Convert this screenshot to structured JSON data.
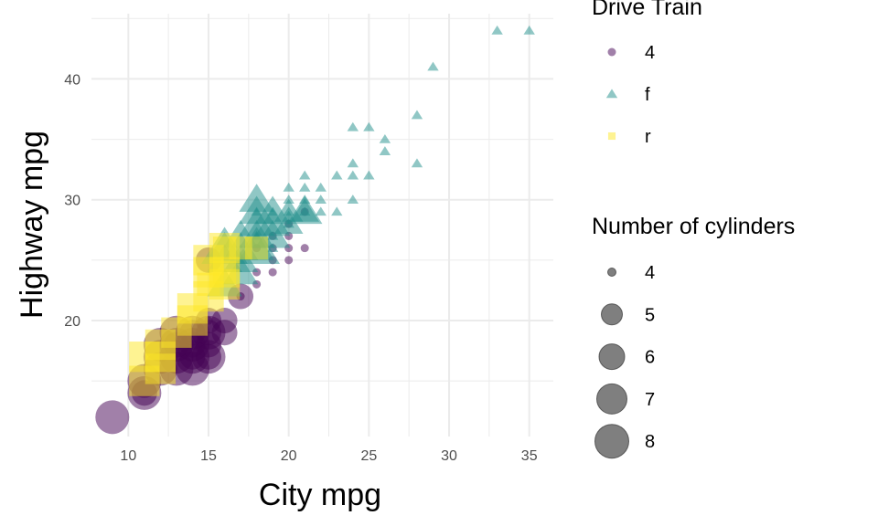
{
  "chart_data": {
    "type": "scatter",
    "xlabel": "City mpg",
    "ylabel": "Highway mpg",
    "xlim": [
      7.7,
      36.5
    ],
    "ylim": [
      10.4,
      45.4
    ],
    "x_ticks": [
      10,
      15,
      20,
      25,
      30,
      35
    ],
    "y_ticks": [
      20,
      30,
      40
    ],
    "grid": true,
    "alpha": 0.5,
    "legend_placement": "right",
    "color_legend": {
      "title": "Drive Train",
      "entries": [
        {
          "label": "4",
          "color": "#440154",
          "shape": "circle"
        },
        {
          "label": "f",
          "color": "#21908C",
          "shape": "triangle"
        },
        {
          "label": "r",
          "color": "#FDE725",
          "shape": "square"
        }
      ]
    },
    "size_legend": {
      "title": "Number of cylinders",
      "entries": [
        "4",
        "5",
        "6",
        "7",
        "8"
      ]
    },
    "point_fields": [
      "cty",
      "hwy",
      "drv",
      "cyl"
    ],
    "points": [
      [
        9,
        12,
        "4",
        8
      ],
      [
        11,
        14,
        "4",
        8
      ],
      [
        11,
        15,
        "4",
        8
      ],
      [
        12,
        16,
        "4",
        8
      ],
      [
        12,
        17,
        "4",
        8
      ],
      [
        13,
        17,
        "4",
        8
      ],
      [
        13,
        16,
        "4",
        8
      ],
      [
        14,
        17,
        "4",
        8
      ],
      [
        14,
        18,
        "4",
        8
      ],
      [
        14,
        19,
        "4",
        8
      ],
      [
        15,
        17,
        "4",
        8
      ],
      [
        13,
        18,
        "4",
        8
      ],
      [
        12,
        18,
        "4",
        8
      ],
      [
        13,
        19,
        "4",
        8
      ],
      [
        15,
        19,
        "4",
        8
      ],
      [
        14,
        16,
        "4",
        8
      ],
      [
        14,
        17,
        "4",
        6
      ],
      [
        14,
        18,
        "4",
        6
      ],
      [
        15,
        18,
        "4",
        6
      ],
      [
        15,
        19,
        "4",
        6
      ],
      [
        15,
        20,
        "4",
        6
      ],
      [
        16,
        20,
        "4",
        6
      ],
      [
        17,
        22,
        "4",
        6
      ],
      [
        13,
        18,
        "4",
        6
      ],
      [
        14,
        19,
        "4",
        6
      ],
      [
        16,
        19,
        "4",
        6
      ],
      [
        15,
        17,
        "4",
        6
      ],
      [
        11,
        14,
        "4",
        6
      ],
      [
        15,
        25,
        "4",
        6
      ],
      [
        18,
        23,
        "4",
        4
      ],
      [
        19,
        25,
        "4",
        4
      ],
      [
        20,
        25,
        "4",
        4
      ],
      [
        20,
        26,
        "4",
        4
      ],
      [
        21,
        26,
        "4",
        4
      ],
      [
        19,
        26,
        "4",
        4
      ],
      [
        18,
        24,
        "4",
        4
      ],
      [
        20,
        27,
        "4",
        4
      ],
      [
        20,
        28,
        "4",
        4
      ],
      [
        21,
        29,
        "4",
        4
      ],
      [
        17,
        22,
        "4",
        4
      ],
      [
        18,
        26,
        "4",
        4
      ],
      [
        19,
        27,
        "4",
        4
      ],
      [
        15,
        20,
        "4",
        4
      ],
      [
        19,
        24,
        "4",
        4
      ],
      [
        18,
        29,
        "f",
        4
      ],
      [
        21,
        29,
        "f",
        4
      ],
      [
        20,
        28,
        "f",
        4
      ],
      [
        21,
        31,
        "f",
        4
      ],
      [
        20,
        31,
        "f",
        4
      ],
      [
        19,
        27,
        "f",
        4
      ],
      [
        21,
        30,
        "f",
        4
      ],
      [
        22,
        31,
        "f",
        4
      ],
      [
        22,
        29,
        "f",
        4
      ],
      [
        23,
        32,
        "f",
        4
      ],
      [
        23,
        29,
        "f",
        4
      ],
      [
        24,
        32,
        "f",
        4
      ],
      [
        24,
        33,
        "f",
        4
      ],
      [
        24,
        30,
        "f",
        4
      ],
      [
        24,
        36,
        "f",
        4
      ],
      [
        25,
        36,
        "f",
        4
      ],
      [
        25,
        32,
        "f",
        4
      ],
      [
        26,
        35,
        "f",
        4
      ],
      [
        26,
        34,
        "f",
        4
      ],
      [
        28,
        37,
        "f",
        4
      ],
      [
        28,
        33,
        "f",
        4
      ],
      [
        29,
        41,
        "f",
        4
      ],
      [
        33,
        44,
        "f",
        4
      ],
      [
        35,
        44,
        "f",
        4
      ],
      [
        19,
        26,
        "f",
        4
      ],
      [
        20,
        29,
        "f",
        4
      ],
      [
        18,
        27,
        "f",
        4
      ],
      [
        19,
        29,
        "f",
        4
      ],
      [
        20,
        30,
        "f",
        4
      ],
      [
        22,
        30,
        "f",
        4
      ],
      [
        21,
        32,
        "f",
        4
      ],
      [
        20,
        28,
        "f",
        5
      ],
      [
        20,
        29,
        "f",
        5
      ],
      [
        21,
        29,
        "f",
        5
      ],
      [
        16,
        26,
        "f",
        6
      ],
      [
        17,
        26,
        "f",
        6
      ],
      [
        18,
        26,
        "f",
        6
      ],
      [
        18,
        29,
        "f",
        6
      ],
      [
        17,
        27,
        "f",
        6
      ],
      [
        16,
        23,
        "f",
        6
      ],
      [
        17,
        24,
        "f",
        6
      ],
      [
        18,
        27,
        "f",
        6
      ],
      [
        19,
        28,
        "f",
        6
      ],
      [
        17,
        25,
        "f",
        6
      ],
      [
        16,
        25,
        "f",
        6
      ],
      [
        18,
        28,
        "f",
        6
      ],
      [
        19,
        27,
        "f",
        6
      ],
      [
        19,
        29,
        "f",
        6
      ],
      [
        21,
        29,
        "f",
        6
      ],
      [
        18,
        30,
        "f",
        6
      ],
      [
        16,
        26,
        "f",
        8
      ],
      [
        18,
        26,
        "f",
        8
      ],
      [
        11,
        15,
        "r",
        8
      ],
      [
        11,
        17,
        "r",
        8
      ],
      [
        12,
        16,
        "r",
        8
      ],
      [
        12,
        17,
        "r",
        8
      ],
      [
        12,
        18,
        "r",
        8
      ],
      [
        13,
        19,
        "r",
        8
      ],
      [
        14,
        20,
        "r",
        8
      ],
      [
        15,
        25,
        "r",
        8
      ],
      [
        16,
        26,
        "r",
        8
      ],
      [
        15,
        24,
        "r",
        8
      ],
      [
        16,
        23,
        "r",
        8
      ],
      [
        16,
        24,
        "r",
        8
      ],
      [
        15,
        22,
        "r",
        8
      ],
      [
        14,
        21,
        "r",
        8
      ],
      [
        15,
        23,
        "r",
        6
      ],
      [
        16,
        24,
        "r",
        6
      ],
      [
        17,
        26,
        "r",
        6
      ],
      [
        16,
        26,
        "r",
        6
      ],
      [
        18,
        26,
        "r",
        6
      ]
    ]
  }
}
